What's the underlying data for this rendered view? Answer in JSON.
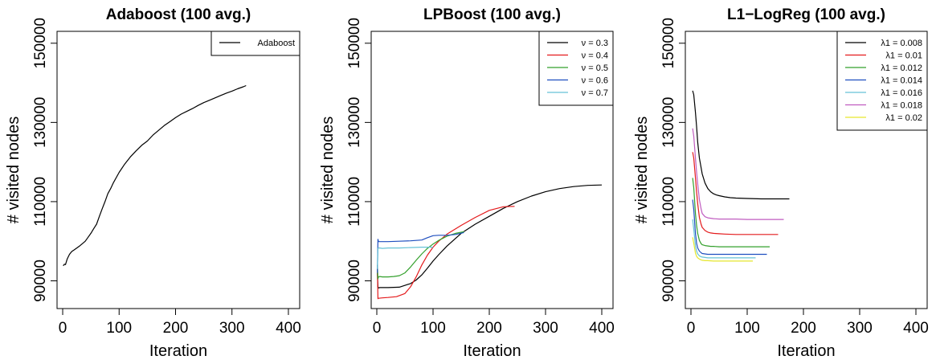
{
  "chart_data": [
    {
      "type": "line",
      "title": "Adaboost (100 avg.)",
      "xlabel": "Iteration",
      "ylabel": "# visited nodes",
      "xlim": [
        -10,
        420
      ],
      "ylim": [
        83000,
        153000
      ],
      "xticks": [
        "0",
        "100",
        "200",
        "300",
        "400"
      ],
      "yticks": [
        "90000",
        "110000",
        "130000",
        "150000"
      ],
      "legend_position": "top-right",
      "series": [
        {
          "name": "Adaboost",
          "color": "#000000",
          "x": [
            1,
            3,
            5,
            8,
            12,
            16,
            20,
            25,
            30,
            35,
            40,
            45,
            50,
            55,
            60,
            65,
            70,
            75,
            80,
            85,
            90,
            100,
            110,
            120,
            130,
            140,
            150,
            160,
            170,
            180,
            190,
            200,
            210,
            220,
            230,
            240,
            250,
            260,
            270,
            280,
            290,
            300,
            310,
            320,
            325
          ],
          "y": [
            93800,
            94200,
            94100,
            95500,
            96700,
            97400,
            97800,
            98300,
            98800,
            99400,
            100000,
            101000,
            102000,
            103200,
            104300,
            106300,
            108200,
            110000,
            112000,
            113300,
            114800,
            117400,
            119500,
            121300,
            122800,
            124200,
            125300,
            126800,
            128000,
            129200,
            130200,
            131200,
            132100,
            132800,
            133500,
            134300,
            135000,
            135600,
            136200,
            136800,
            137400,
            137900,
            138500,
            139000,
            139300
          ]
        }
      ]
    },
    {
      "type": "line",
      "title": "LPBoost (100 avg.)",
      "xlabel": "Iteration",
      "ylabel": "# visited nodes",
      "xlim": [
        -10,
        420
      ],
      "ylim": [
        83000,
        153000
      ],
      "xticks": [
        "0",
        "100",
        "200",
        "300",
        "400"
      ],
      "yticks": [
        "90000",
        "110000",
        "130000",
        "150000"
      ],
      "legend_position": "top-right",
      "series": [
        {
          "name": "ν = 0.3",
          "color": "#000000",
          "x": [
            1,
            2,
            3,
            5,
            10,
            20,
            40,
            60,
            70,
            80,
            90,
            100,
            110,
            125,
            150,
            175,
            200,
            225,
            250,
            275,
            300,
            325,
            350,
            375,
            400
          ],
          "y": [
            92000,
            88500,
            88200,
            88300,
            88300,
            88300,
            88400,
            89300,
            90200,
            91500,
            93200,
            95000,
            96600,
            98800,
            102000,
            104300,
            106300,
            108300,
            110000,
            111400,
            112500,
            113300,
            113800,
            114100,
            114200
          ]
        },
        {
          "name": "ν = 0.4",
          "color": "#e41a1c",
          "x": [
            1,
            2,
            3,
            10,
            20,
            35,
            50,
            60,
            70,
            80,
            90,
            100,
            110,
            125,
            150,
            175,
            200,
            225,
            245
          ],
          "y": [
            94000,
            85500,
            85600,
            85700,
            85800,
            86000,
            86800,
            88500,
            91000,
            94000,
            96500,
            98500,
            100000,
            101800,
            104000,
            106000,
            107800,
            108700,
            108800
          ]
        },
        {
          "name": "ν = 0.5",
          "color": "#33a02c",
          "x": [
            1,
            2,
            3,
            5,
            10,
            20,
            30,
            40,
            50,
            60,
            70,
            80,
            90,
            100,
            110,
            125,
            140,
            155
          ],
          "y": [
            94000,
            90500,
            91000,
            91100,
            91000,
            91000,
            91100,
            91300,
            92000,
            93500,
            95200,
            96800,
            98200,
            99300,
            100200,
            101300,
            102000,
            102400
          ]
        },
        {
          "name": "ν = 0.6",
          "color": "#1f4fbf",
          "x": [
            1,
            2,
            3,
            5,
            10,
            20,
            40,
            60,
            80,
            90,
            100,
            110,
            125,
            140,
            155
          ],
          "y": [
            92000,
            100500,
            99900,
            99900,
            99900,
            99900,
            100000,
            100100,
            100300,
            100900,
            101400,
            101500,
            101500,
            101700,
            102200
          ]
        },
        {
          "name": "ν = 0.7",
          "color": "#66c2d6",
          "x": [
            1,
            2,
            3,
            5,
            10,
            20,
            40,
            60,
            80,
            100
          ],
          "y": [
            93000,
            98200,
            98300,
            98300,
            98200,
            98300,
            98300,
            98400,
            98500,
            98500
          ]
        }
      ]
    },
    {
      "type": "line",
      "title": "L1−LogReg (100 avg.)",
      "xlabel": "Iteration",
      "ylabel": "# visited nodes",
      "xlim": [
        -10,
        420
      ],
      "ylim": [
        83000,
        153000
      ],
      "xticks": [
        "0",
        "100",
        "200",
        "300",
        "400"
      ],
      "yticks": [
        "90000",
        "110000",
        "130000",
        "150000"
      ],
      "legend_position": "top-right",
      "series": [
        {
          "name": "λ1 = 0.008",
          "color": "#000000",
          "x": [
            3,
            5,
            8,
            10,
            12,
            15,
            20,
            25,
            30,
            35,
            40,
            45,
            50,
            60,
            70,
            80,
            100,
            125,
            150,
            175
          ],
          "y": [
            138000,
            137000,
            132500,
            129000,
            125000,
            121000,
            117000,
            114700,
            113300,
            112500,
            112000,
            111700,
            111500,
            111200,
            111000,
            110900,
            110800,
            110700,
            110700,
            110700
          ]
        },
        {
          "name": "λ1 = 0.01",
          "color": "#e41a1c",
          "x": [
            3,
            5,
            8,
            10,
            12,
            15,
            18,
            20,
            25,
            30,
            35,
            40,
            50,
            60,
            80,
            100,
            125,
            150,
            155
          ],
          "y": [
            122500,
            121000,
            116000,
            112500,
            109500,
            106000,
            104300,
            103500,
            102700,
            102300,
            102100,
            102000,
            101900,
            101800,
            101700,
            101700,
            101700,
            101700,
            101700
          ]
        },
        {
          "name": "λ1 = 0.012",
          "color": "#33a02c",
          "x": [
            3,
            5,
            8,
            10,
            12,
            15,
            18,
            20,
            25,
            30,
            35,
            40,
            50,
            60,
            80,
            100,
            120,
            140
          ],
          "y": [
            116000,
            113500,
            107000,
            104000,
            102000,
            100200,
            99400,
            99100,
            98900,
            98800,
            98700,
            98700,
            98600,
            98600,
            98600,
            98600,
            98600,
            98600
          ]
        },
        {
          "name": "λ1 = 0.014",
          "color": "#1f4fbf",
          "x": [
            3,
            5,
            8,
            10,
            12,
            15,
            18,
            20,
            25,
            30,
            40,
            50,
            60,
            80,
            100,
            120,
            135
          ],
          "y": [
            110500,
            108000,
            102000,
            99500,
            98300,
            97500,
            97100,
            96900,
            96800,
            96700,
            96700,
            96700,
            96700,
            96700,
            96700,
            96700,
            96700
          ]
        },
        {
          "name": "λ1 = 0.016",
          "color": "#66c2d6",
          "x": [
            3,
            5,
            8,
            10,
            12,
            15,
            18,
            20,
            25,
            30,
            40,
            50,
            60,
            80,
            100,
            115
          ],
          "y": [
            105500,
            103000,
            98800,
            97500,
            96800,
            96300,
            96100,
            96000,
            95900,
            95800,
            95800,
            95800,
            95800,
            95800,
            95800,
            95800
          ]
        },
        {
          "name": "λ1 = 0.018",
          "color": "#c05cc0",
          "x": [
            3,
            5,
            8,
            10,
            12,
            15,
            18,
            20,
            25,
            30,
            35,
            40,
            50,
            60,
            80,
            100,
            125,
            150,
            165
          ],
          "y": [
            128500,
            126500,
            121000,
            117500,
            114500,
            110500,
            108200,
            107000,
            106200,
            105900,
            105800,
            105700,
            105600,
            105600,
            105600,
            105500,
            105500,
            105500,
            105500
          ]
        },
        {
          "name": "λ1 = 0.02",
          "color": "#e6e62e",
          "x": [
            3,
            5,
            8,
            10,
            12,
            15,
            18,
            20,
            25,
            30,
            40,
            50,
            60,
            80,
            100,
            110
          ],
          "y": [
            101000,
            99500,
            97000,
            96200,
            95800,
            95500,
            95300,
            95200,
            95100,
            95100,
            95000,
            95000,
            95000,
            95000,
            95000,
            95000
          ]
        }
      ]
    }
  ]
}
